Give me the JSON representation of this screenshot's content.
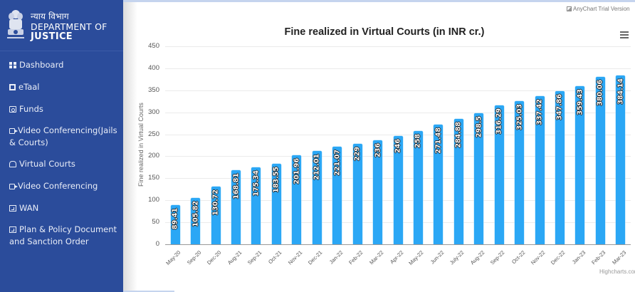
{
  "sidebar": {
    "brand": {
      "hindi": "न्याय विभाग",
      "line1": "DEPARTMENT OF",
      "line2": "JUSTICE"
    },
    "items": [
      {
        "label": "Dashboard",
        "icon": "grid-icon"
      },
      {
        "label": "eTaal",
        "icon": "nodes-icon"
      },
      {
        "label": "Funds",
        "icon": "money-icon"
      },
      {
        "label": "Video Conferencing(Jails & Courts)",
        "icon": "video-icon"
      },
      {
        "label": "Virtual Courts",
        "icon": "court-icon"
      },
      {
        "label": "Video Conferencing",
        "icon": "video-icon"
      },
      {
        "label": "WAN",
        "icon": "external-link-icon"
      },
      {
        "label": "Plan & Policy Document and Sanction Order",
        "icon": "external-link-icon"
      }
    ]
  },
  "watermark": "AnyChart Trial Version",
  "credits": "Highcharts.com",
  "colors": {
    "sidebar_bg": "#2b4c9b",
    "bar": "#2ba7f5"
  },
  "chart_data": {
    "type": "bar",
    "title": "Fine realized in Virtual Courts (in INR cr.)",
    "xlabel": "",
    "ylabel": "Fine realized in Virtual Courts",
    "ylim": [
      0,
      450
    ],
    "yticks": [
      0,
      50,
      100,
      150,
      200,
      250,
      300,
      350,
      400,
      450
    ],
    "grid": true,
    "legend": "none",
    "categories": [
      "May-20",
      "Sep-20",
      "Dec-20",
      "Aug-21",
      "Sep-21",
      "Oct-21",
      "Nov-21",
      "Dec-21",
      "Jan-22",
      "Feb-22",
      "Mar-22",
      "Apr-22",
      "May-22",
      "Jun-22",
      "July-22",
      "Aug-22",
      "Sep-22",
      "Oct-22",
      "Nov-22",
      "Dec-22",
      "Jan-23",
      "Feb-23",
      "Mar-23"
    ],
    "values": [
      89.41,
      105.82,
      130.72,
      168.81,
      175.34,
      183.55,
      201.96,
      212.01,
      221.07,
      229,
      236,
      246,
      258,
      271.48,
      284.88,
      298.5,
      316.29,
      325.03,
      337.42,
      347.86,
      359.43,
      380.06,
      384.14
    ],
    "value_labels": [
      "89.41",
      "105.82",
      "130.72",
      "168.81",
      "175.34",
      "183.55",
      "201.96",
      "212.01",
      "221.07",
      "229",
      "236",
      "246",
      "258",
      "271.48",
      "284.88",
      "298.5",
      "316.29",
      "325.03",
      "337.42",
      "347.86",
      "359.43",
      "380.06",
      "384.14"
    ]
  }
}
